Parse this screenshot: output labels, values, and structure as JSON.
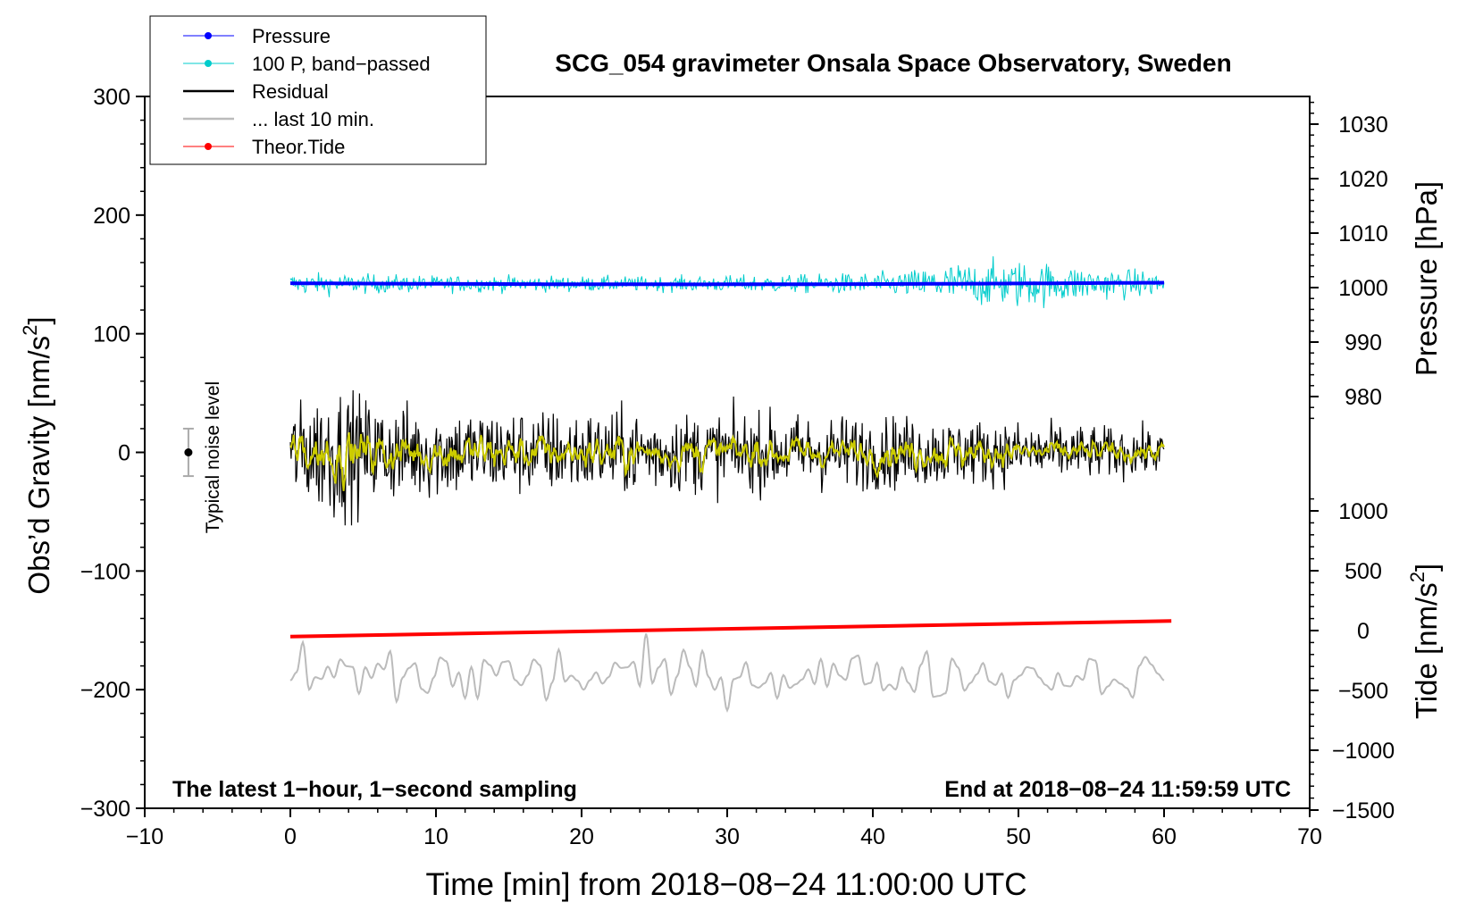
{
  "chart_data": {
    "type": "line",
    "title": "SCG_054 gravimeter Onsala Space Observatory, Sweden",
    "xlabel": "Time [min] from 2018−08−24 11:00:00 UTC",
    "ylabel_left": "Obs’d Gravity [nm/s",
    "ylabel_left_sup": "2",
    "ylabel_left_close": "]",
    "ylabel_right_pressure": "Pressure [hPa]",
    "ylabel_right_tide": "Tide [nm/s",
    "ylabel_right_tide_sup": "2",
    "ylabel_right_tide_close": "]",
    "x_range": [
      -10,
      70
    ],
    "y_left_range": [
      -300,
      300
    ],
    "x_ticks": [
      -10,
      0,
      10,
      20,
      30,
      40,
      50,
      60,
      70
    ],
    "x_tick_labels": [
      "−10",
      "0",
      "10",
      "20",
      "30",
      "40",
      "50",
      "60",
      "70"
    ],
    "y_left_ticks": [
      300,
      200,
      100,
      0,
      -100,
      -200,
      -300
    ],
    "y_left_tick_labels": [
      "300",
      "200",
      "100",
      "0",
      "−100",
      "−200",
      "−300"
    ],
    "pressure_range": [
      965,
      1035
    ],
    "pressure_ticks": [
      1030,
      1020,
      1010,
      1000,
      990,
      980
    ],
    "pressure_tick_labels": [
      "1030",
      "1020",
      "1010",
      "1000",
      "990",
      "980"
    ],
    "tide_range": [
      -1500,
      1500
    ],
    "tide_ticks": [
      1000,
      500,
      0,
      -500,
      -1000,
      -1500
    ],
    "tide_tick_labels": [
      "1000",
      "500",
      "0",
      "−500",
      "−1000",
      "−1500"
    ],
    "series": [
      {
        "name": "Pressure",
        "color": "#0000ff",
        "axis": "pressure",
        "x_start": 0,
        "x_end": 60,
        "start_value": 1000.8,
        "end_value": 1000.9
      },
      {
        "name": "100 P, band−passed",
        "color": "#00cccc",
        "axis": "gravity",
        "x_start": 0,
        "x_end": 60,
        "baseline": 142,
        "amplitude_profile": [
          [
            0,
            12
          ],
          [
            10,
            9
          ],
          [
            25,
            8
          ],
          [
            35,
            10
          ],
          [
            42,
            13
          ],
          [
            45,
            22
          ],
          [
            50,
            26
          ],
          [
            55,
            18
          ],
          [
            60,
            13
          ]
        ]
      },
      {
        "name": "Residual",
        "color": "#000000",
        "axis": "gravity",
        "x_start": 0,
        "x_end": 60,
        "baseline": 0,
        "amplitude_profile": [
          [
            0,
            35
          ],
          [
            3,
            55
          ],
          [
            6,
            40
          ],
          [
            15,
            35
          ],
          [
            30,
            32
          ],
          [
            40,
            30
          ],
          [
            50,
            25
          ],
          [
            60,
            18
          ]
        ]
      },
      {
        "name": "... last 10 min.",
        "color": "#bbbbbb",
        "axis": "gravity",
        "x_start": 0,
        "x_end": 60,
        "baseline": -188,
        "amplitude_profile": [
          [
            0,
            20
          ],
          [
            8,
            28
          ],
          [
            30,
            18
          ],
          [
            60,
            15
          ]
        ]
      },
      {
        "name": "Theor.Tide",
        "color": "#ff0000",
        "axis": "tide",
        "x_start": 0,
        "x_end": 60.5,
        "start_value": -50,
        "end_value": 80
      }
    ],
    "filtered_residual_color": "#cccc00",
    "legend_placement": "top-left",
    "noise_indicator": {
      "label": "Typical noise level",
      "x": -7,
      "center": 0,
      "half_range": 20
    },
    "annotations": {
      "bottom_left": "The latest 1−hour, 1−second sampling",
      "bottom_right": "End at 2018−08−24 11:59:59 UTC"
    }
  }
}
